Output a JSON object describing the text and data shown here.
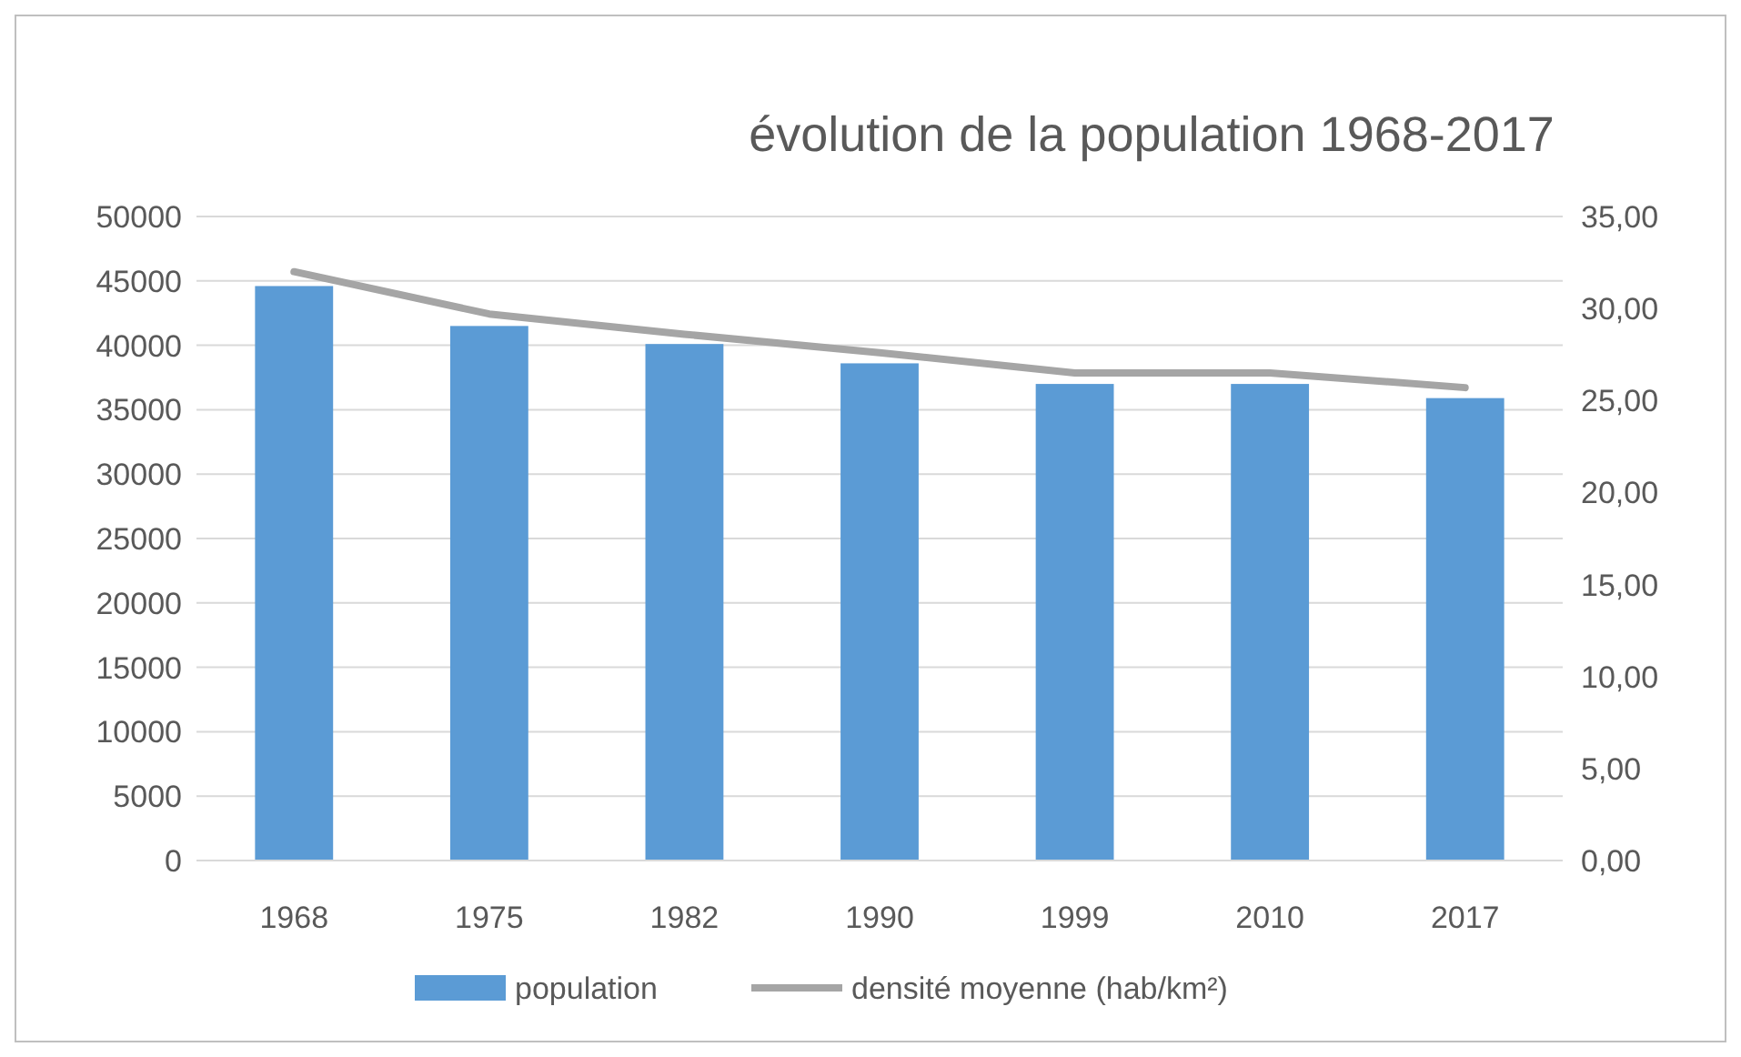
{
  "chart_data": {
    "type": "bar",
    "title": "évolution de la population 1968-2017",
    "categories": [
      "1968",
      "1975",
      "1982",
      "1990",
      "1999",
      "2010",
      "2017"
    ],
    "series": [
      {
        "name": "population",
        "color": "#5b9bd5",
        "values": [
          44600,
          41500,
          40100,
          38600,
          37000,
          37000,
          35900
        ]
      },
      {
        "name": "densité moyenne (hab/km²)",
        "type": "line",
        "axis": "y2",
        "color": "#a5a5a5",
        "values": [
          32.0,
          29.7,
          28.6,
          27.6,
          26.5,
          26.5,
          25.7
        ]
      }
    ],
    "ylim": [
      0,
      50000
    ],
    "yticks": [
      0,
      5000,
      10000,
      15000,
      20000,
      25000,
      30000,
      35000,
      40000,
      45000,
      50000
    ],
    "y2lim": [
      0,
      35
    ],
    "y2ticks": [
      {
        "value": 0,
        "label": "0,00"
      },
      {
        "value": 5,
        "label": "5,00"
      },
      {
        "value": 10,
        "label": "10,00"
      },
      {
        "value": 15,
        "label": "15,00"
      },
      {
        "value": 20,
        "label": "20,00"
      },
      {
        "value": 25,
        "label": "25,00"
      },
      {
        "value": 30,
        "label": "30,00"
      },
      {
        "value": 35,
        "label": "35,00"
      }
    ],
    "grid": "y",
    "legend": "bottom",
    "marker": "none"
  }
}
